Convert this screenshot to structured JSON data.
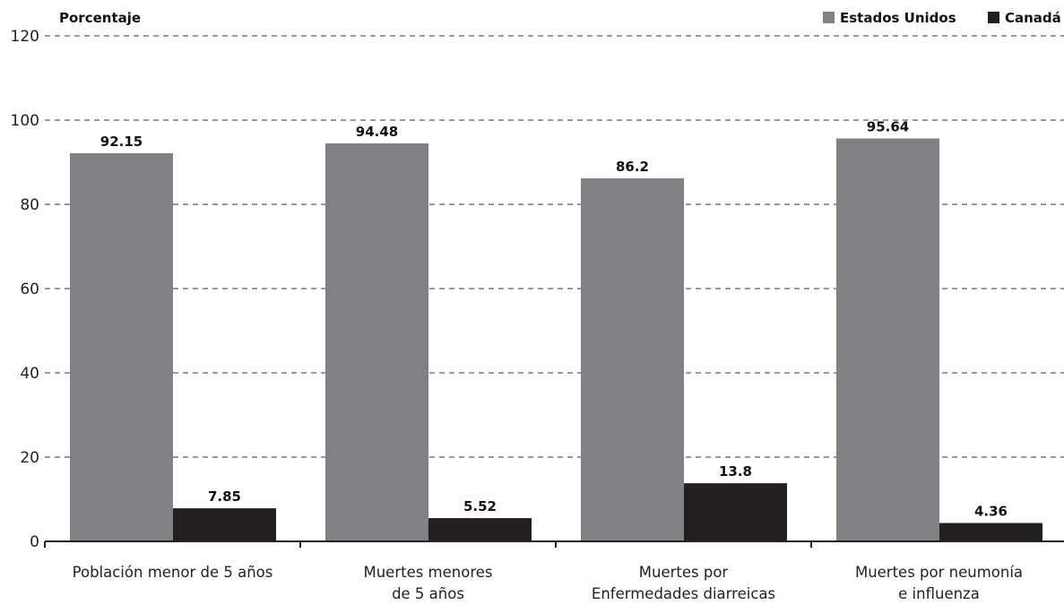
{
  "chart_data": {
    "type": "bar",
    "ylabel": "Porcentaje",
    "ylim": [
      0,
      120
    ],
    "yticks": [
      0,
      20,
      40,
      60,
      80,
      100,
      120
    ],
    "grid": true,
    "legend_position": "top-right",
    "categories": [
      [
        "Población menor de 5 años"
      ],
      [
        "Muertes menores",
        "de 5 años"
      ],
      [
        "Muertes por",
        "Enfermedades diarreicas"
      ],
      [
        "Muertes por neumonía",
        "e influenza"
      ]
    ],
    "series": [
      {
        "name": "Estados Unidos",
        "color": "#808085",
        "values": [
          92.15,
          94.48,
          86.2,
          95.64
        ],
        "labels": [
          "92.15",
          "94.48",
          "86.2",
          "95.64"
        ]
      },
      {
        "name": "Canadá",
        "color": "#231f20",
        "values": [
          7.85,
          5.52,
          13.8,
          4.36
        ],
        "labels": [
          "7.85",
          "5.52",
          "13.8",
          "4.36"
        ]
      }
    ]
  }
}
